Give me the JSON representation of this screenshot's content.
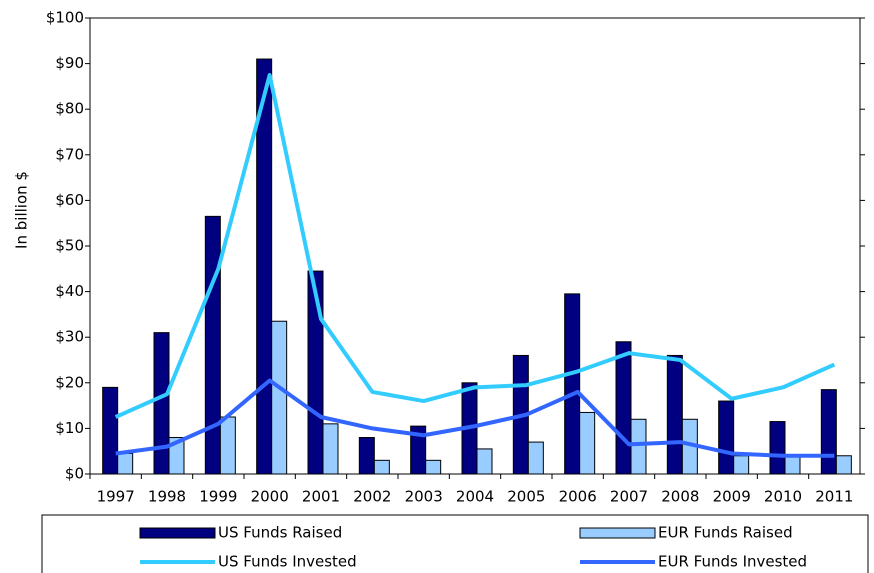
{
  "chart_data": {
    "type": "bar",
    "y_label": "In billion $",
    "categories": [
      "1997",
      "1998",
      "1999",
      "2000",
      "2001",
      "2002",
      "2003",
      "2004",
      "2005",
      "2006",
      "2007",
      "2008",
      "2009",
      "2010",
      "2011"
    ],
    "series": [
      {
        "name": "US Funds Raised",
        "type": "bar",
        "color": "#000080",
        "values": [
          19,
          31,
          56.5,
          91,
          44.5,
          8,
          10.5,
          20,
          26,
          39.5,
          29,
          26,
          16,
          11.5,
          18.5
        ]
      },
      {
        "name": "EUR Funds Raised",
        "type": "bar",
        "color": "#99ccff",
        "values": [
          4.5,
          8,
          12.5,
          33.5,
          11,
          3,
          3,
          5.5,
          7,
          13.5,
          12,
          12,
          4,
          4,
          4
        ]
      },
      {
        "name": "US Funds Invested",
        "type": "line",
        "color": "#33ccff",
        "values": [
          12.5,
          17.5,
          45,
          87.5,
          34,
          18,
          16,
          19,
          19.5,
          22.5,
          26.5,
          25,
          16.5,
          19,
          24
        ]
      },
      {
        "name": "EUR Funds Invested",
        "type": "line",
        "color": "#3366ff",
        "values": [
          4.5,
          6,
          11,
          20.5,
          12.5,
          10,
          8.5,
          10.5,
          13,
          18,
          6.5,
          7,
          4.5,
          4,
          4
        ]
      }
    ],
    "ylim": [
      0,
      100
    ],
    "yticks": [
      {
        "value": 0,
        "label": "$0"
      },
      {
        "value": 10,
        "label": "$10"
      },
      {
        "value": 20,
        "label": "$20"
      },
      {
        "value": 30,
        "label": "$30"
      },
      {
        "value": 40,
        "label": "$40"
      },
      {
        "value": 50,
        "label": "$50"
      },
      {
        "value": 60,
        "label": "$60"
      },
      {
        "value": 70,
        "label": "$70"
      },
      {
        "value": 80,
        "label": "$80"
      },
      {
        "value": 90,
        "label": "$90"
      },
      {
        "value": 100,
        "label": "$100"
      }
    ],
    "legend": "bottom"
  }
}
